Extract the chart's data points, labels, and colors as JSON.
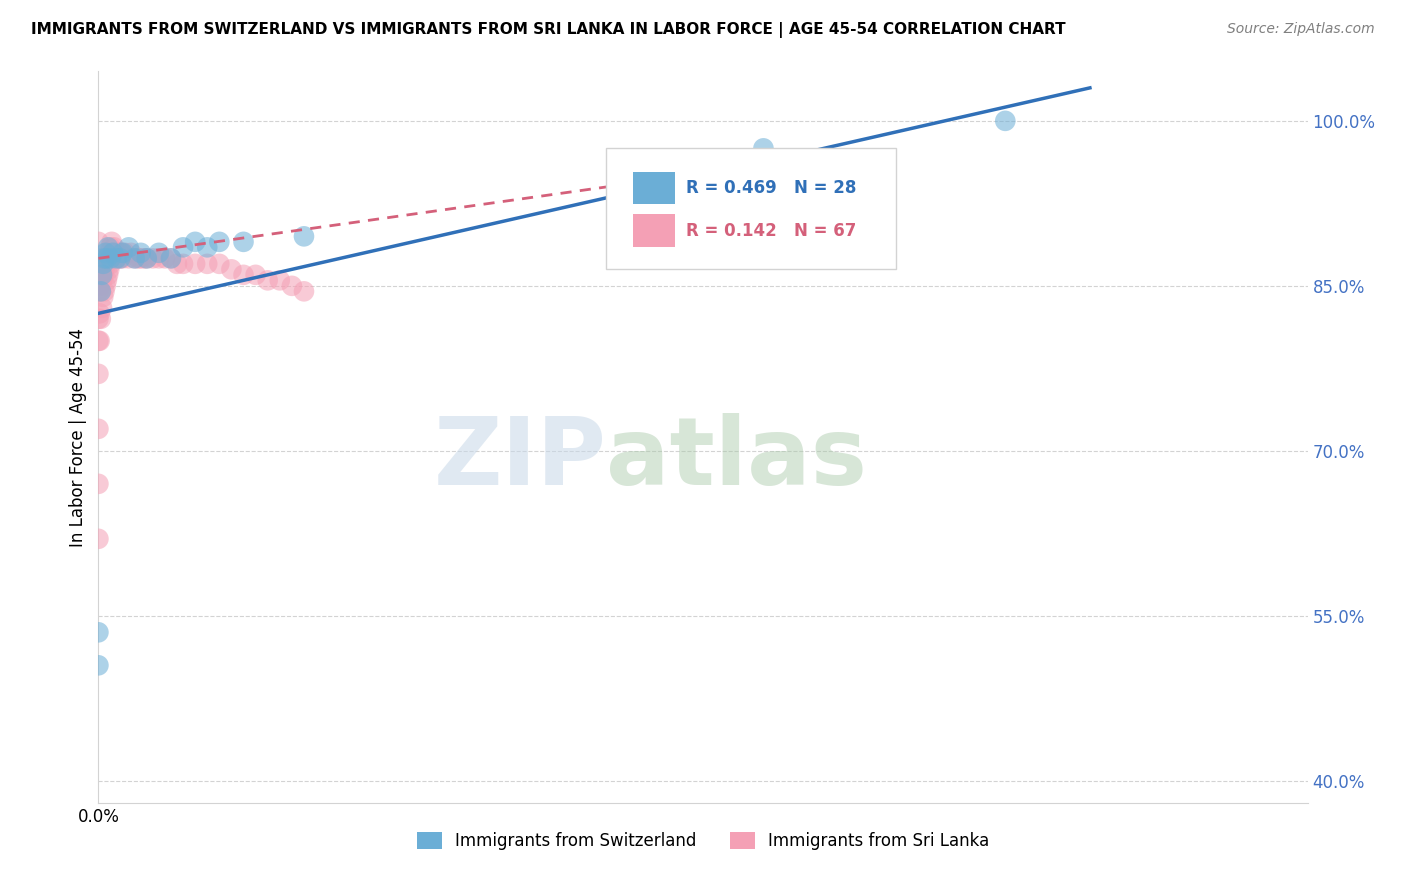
{
  "title": "IMMIGRANTS FROM SWITZERLAND VS IMMIGRANTS FROM SRI LANKA IN LABOR FORCE | AGE 45-54 CORRELATION CHART",
  "source": "Source: ZipAtlas.com",
  "ylabel": "In Labor Force | Age 45-54",
  "xlim": [
    0.0,
    1.0
  ],
  "ylim": [
    0.38,
    1.045
  ],
  "yticks": [
    0.4,
    0.55,
    0.7,
    0.85,
    1.0
  ],
  "ytick_labels": [
    "40.0%",
    "55.0%",
    "70.0%",
    "85.0%",
    "100.0%"
  ],
  "xtick_pos": [
    0.0
  ],
  "xtick_labels": [
    "0.0%"
  ],
  "legend_blue_r": "R = 0.469",
  "legend_blue_n": "N = 28",
  "legend_pink_r": "R = 0.142",
  "legend_pink_n": "N = 67",
  "blue_color": "#6baed6",
  "pink_color": "#f4a0b5",
  "trendline_blue": "#3070b8",
  "trendline_pink": "#d4607a",
  "watermark_zip": "ZIP",
  "watermark_atlas": "atlas",
  "blue_scatter_x": [
    0.0,
    0.0,
    0.002,
    0.003,
    0.004,
    0.005,
    0.006,
    0.007,
    0.008,
    0.01,
    0.012,
    0.015,
    0.018,
    0.02,
    0.025,
    0.03,
    0.035,
    0.04,
    0.05,
    0.06,
    0.07,
    0.08,
    0.09,
    0.1,
    0.12,
    0.17,
    0.55,
    0.75
  ],
  "blue_scatter_y": [
    0.535,
    0.505,
    0.845,
    0.86,
    0.87,
    0.875,
    0.88,
    0.875,
    0.885,
    0.875,
    0.88,
    0.875,
    0.875,
    0.88,
    0.885,
    0.875,
    0.88,
    0.875,
    0.88,
    0.875,
    0.885,
    0.89,
    0.885,
    0.89,
    0.89,
    0.895,
    0.975,
    1.0
  ],
  "pink_scatter_x": [
    0.0,
    0.0,
    0.0,
    0.0,
    0.0,
    0.0,
    0.0,
    0.0,
    0.0,
    0.0,
    0.001,
    0.001,
    0.001,
    0.002,
    0.002,
    0.002,
    0.003,
    0.003,
    0.004,
    0.004,
    0.005,
    0.005,
    0.006,
    0.006,
    0.007,
    0.007,
    0.008,
    0.008,
    0.009,
    0.009,
    0.01,
    0.01,
    0.011,
    0.011,
    0.012,
    0.013,
    0.014,
    0.015,
    0.016,
    0.017,
    0.018,
    0.019,
    0.02,
    0.022,
    0.025,
    0.027,
    0.03,
    0.033,
    0.035,
    0.038,
    0.04,
    0.045,
    0.05,
    0.055,
    0.06,
    0.065,
    0.07,
    0.08,
    0.09,
    0.1,
    0.11,
    0.12,
    0.13,
    0.14,
    0.15,
    0.16,
    0.17
  ],
  "pink_scatter_y": [
    0.62,
    0.67,
    0.72,
    0.77,
    0.8,
    0.82,
    0.845,
    0.86,
    0.875,
    0.89,
    0.8,
    0.825,
    0.85,
    0.82,
    0.845,
    0.87,
    0.83,
    0.855,
    0.84,
    0.86,
    0.845,
    0.865,
    0.85,
    0.87,
    0.855,
    0.875,
    0.86,
    0.875,
    0.865,
    0.88,
    0.87,
    0.885,
    0.875,
    0.89,
    0.88,
    0.885,
    0.875,
    0.88,
    0.875,
    0.88,
    0.875,
    0.88,
    0.875,
    0.88,
    0.875,
    0.88,
    0.875,
    0.875,
    0.875,
    0.875,
    0.875,
    0.875,
    0.875,
    0.875,
    0.875,
    0.87,
    0.87,
    0.87,
    0.87,
    0.87,
    0.865,
    0.86,
    0.86,
    0.855,
    0.855,
    0.85,
    0.845
  ],
  "blue_trendline_x0": 0.0,
  "blue_trendline_y0": 0.825,
  "blue_trendline_x1": 0.82,
  "blue_trendline_y1": 1.03,
  "pink_trendline_x0": 0.0,
  "pink_trendline_y0": 0.875,
  "pink_trendline_x1": 0.55,
  "pink_trendline_y1": 0.96
}
